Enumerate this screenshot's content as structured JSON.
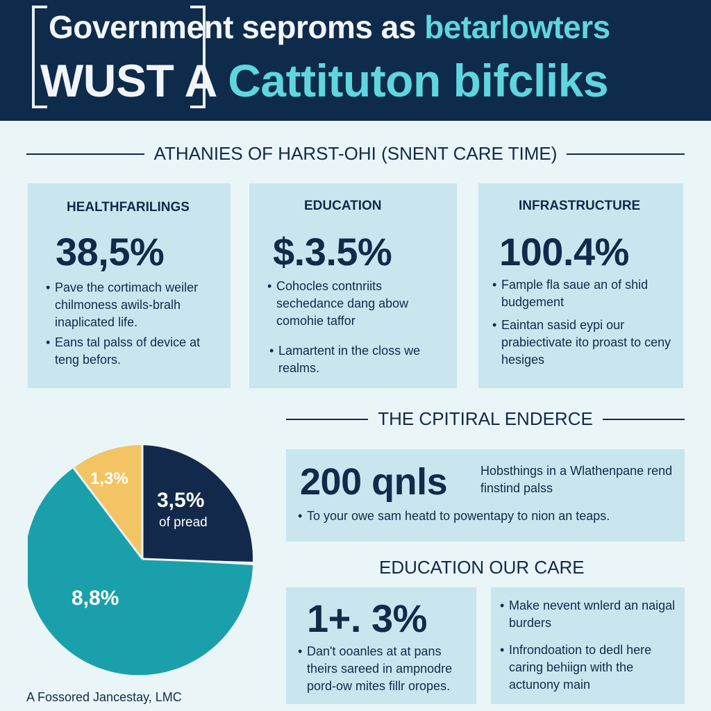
{
  "header": {
    "line1_a": "Government seproms as ",
    "line1_b": "betarlowters",
    "line2_a": "WUST",
    "line2_b": " A ",
    "line2_c": "Cattituton bifcliks"
  },
  "section1": {
    "title": "ATHANIES OF HARST-OHI (SNENT CARE TIME)",
    "cards": [
      {
        "label": "HEALTHFARILINGS",
        "value": "38,5%",
        "bullets": [
          "Pave the cortimach weiler chilmoness awils-bralh inaplicated life.",
          "Eans tal palss of device at teng befors."
        ]
      },
      {
        "label": "EDUCATION",
        "value": "$.3.5%",
        "bullets": [
          "Cohocles contnriits sechedance dang abow comohie taffor",
          "Lamartent in the closs we realms."
        ]
      },
      {
        "label": "INFRASTRUCTURE",
        "value": "100.4%",
        "bullets": [
          "Fample fla saue an of shid budgement",
          "Eaintan sasid eypi our prabiectivate ito proast to ceny hesiges"
        ]
      }
    ]
  },
  "section2": {
    "title": "THE CPITIRAL ENDERCE",
    "value": "200 qnls",
    "side_text": "Hobsthings in a Wlathenpane rend finstind palss",
    "bullet": "To your owe sam heatd to powentapy to nion an teaps."
  },
  "section3": {
    "title": "EDUCATION OUR CARE",
    "value": "1+. 3%",
    "left_bullet": "Dan't ooanles at at pans theirs sareed in ampnodre pord-ow mites fillr oropes.",
    "right_bullets": [
      "Make nevent wnlerd an naigal burders",
      "Infrondoation to dedl here caring behiign with the actunony main"
    ]
  },
  "pie": {
    "slices": [
      {
        "label": "3,5%",
        "sublabel": "of pread",
        "color": "#13294b"
      },
      {
        "label": "8,8%",
        "sublabel": "",
        "color": "#1aa0aa"
      },
      {
        "label": "1,3%",
        "sublabel": "",
        "color": "#f2c463"
      }
    ]
  },
  "footer": {
    "text": "A Fossored Jancestay, LMC"
  },
  "colors": {
    "navy": "#0f2b4c",
    "cyan": "#5fd6dd",
    "teal": "#1aa0aa",
    "gold": "#f2c463",
    "card": "#c9e6ee"
  }
}
